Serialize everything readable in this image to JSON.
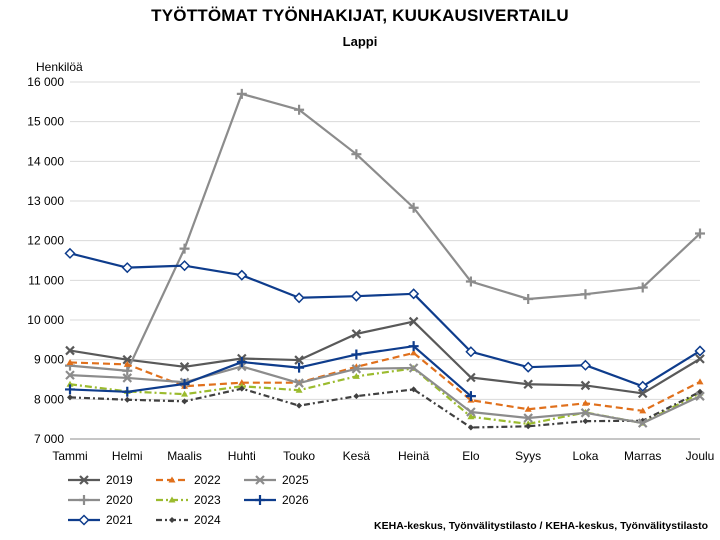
{
  "chart_data": {
    "type": "line",
    "title": "TYÖTTÖMAT TYÖNHAKIJAT, KUUKAUSIVERTAILU",
    "subtitle": "Lappi",
    "ylabel": "Henkilöä",
    "xlabel": "",
    "ylim": [
      7000,
      16000
    ],
    "yticks": [
      7000,
      8000,
      9000,
      10000,
      11000,
      12000,
      13000,
      14000,
      15000,
      16000
    ],
    "ytick_labels": [
      "7 000",
      "8 000",
      "9 000",
      "10 000",
      "11 000",
      "12 000",
      "13 000",
      "14 000",
      "15 000",
      "16 000"
    ],
    "grid": true,
    "legend_position": "bottom-left",
    "categories": [
      "Tammi",
      "Helmi",
      "Maalis",
      "Huhti",
      "Touko",
      "Kesä",
      "Heinä",
      "Elo",
      "Syys",
      "Loka",
      "Marras",
      "Joulu"
    ],
    "series": [
      {
        "name": "2019",
        "color": "#595959",
        "marker": "x",
        "dash": "solid",
        "values": [
          9230,
          9000,
          8820,
          9030,
          8990,
          9650,
          9960,
          8550,
          8380,
          8350,
          8150,
          9020
        ]
      },
      {
        "name": "2020",
        "color": "#8c8c8c",
        "marker": "plus",
        "dash": "solid",
        "values": [
          8850,
          8720,
          11800,
          15700,
          15300,
          14180,
          12830,
          10970,
          10530,
          10650,
          10820,
          12180
        ]
      },
      {
        "name": "2021",
        "color": "#0e3c8c",
        "marker": "diamond",
        "dash": "solid",
        "values": [
          11680,
          11320,
          11370,
          11130,
          10560,
          10600,
          10660,
          9200,
          8810,
          8860,
          8330,
          9220
        ]
      },
      {
        "name": "2022",
        "color": "#e0701c",
        "marker": "tri",
        "dash": "longdash",
        "values": [
          8930,
          8880,
          8330,
          8420,
          8420,
          8820,
          9170,
          7980,
          7750,
          7900,
          7710,
          8440
        ]
      },
      {
        "name": "2023",
        "color": "#9bbb2e",
        "marker": "tri",
        "dash": "dashdot",
        "values": [
          8380,
          8200,
          8130,
          8330,
          8230,
          8580,
          8780,
          7560,
          7380,
          7670,
          7400,
          8160
        ]
      },
      {
        "name": "2024",
        "color": "#404040",
        "marker": "dot",
        "dash": "dotdash",
        "values": [
          8050,
          7990,
          7950,
          8270,
          7840,
          8080,
          8250,
          7290,
          7320,
          7450,
          7460,
          8190
        ]
      },
      {
        "name": "2025",
        "color": "#8c8c8c",
        "marker": "x",
        "dash": "solid",
        "values": [
          8610,
          8540,
          8430,
          8830,
          8410,
          8770,
          8790,
          7680,
          7530,
          7660,
          7400,
          8080
        ]
      },
      {
        "name": "2026",
        "color": "#0e3c8c",
        "marker": "plus",
        "dash": "solid",
        "values": [
          8250,
          8190,
          8390,
          8940,
          8800,
          9130,
          9340,
          8080,
          null,
          null,
          null,
          null
        ]
      }
    ]
  },
  "source": "KEHA-keskus, Työnvälitystilasto / KEHA-keskus, Työnvälitystilasto"
}
